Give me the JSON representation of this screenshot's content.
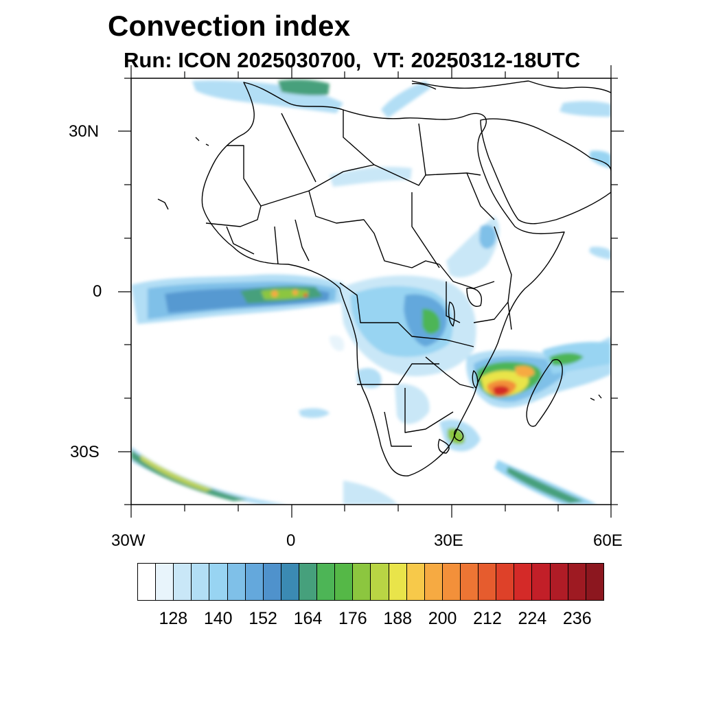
{
  "title": "Convection index",
  "subtitle": "Run: ICON 2025030700,  VT: 20250312-18UTC",
  "map": {
    "lon_range": [
      -30,
      60
    ],
    "lat_range": [
      -40,
      40
    ],
    "lat_ticks": [
      {
        "value": 30,
        "label": "30N"
      },
      {
        "value": 0,
        "label": "0"
      },
      {
        "value": -30,
        "label": "30S"
      }
    ],
    "lon_ticks": [
      {
        "value": -30,
        "label": "30W"
      },
      {
        "value": 0,
        "label": "0"
      },
      {
        "value": 30,
        "label": "30E"
      },
      {
        "value": 60,
        "label": "60E"
      }
    ]
  },
  "colorbar": {
    "colors": [
      "#ffffff",
      "#e8f4fb",
      "#c9e7f7",
      "#b2def5",
      "#98d4f2",
      "#7fc0e8",
      "#64a8dc",
      "#4f92cc",
      "#3b8ab3",
      "#46a07c",
      "#4db556",
      "#55b847",
      "#8cc63f",
      "#b9d544",
      "#e9e44a",
      "#f7c94a",
      "#f6aa42",
      "#f3903a",
      "#ed7534",
      "#e65c2e",
      "#de4129",
      "#d42a28",
      "#c21f28",
      "#b01c26",
      "#9e1a22",
      "#8c171f"
    ],
    "labels": [
      "128",
      "140",
      "152",
      "164",
      "176",
      "188",
      "200",
      "212",
      "224",
      "236"
    ]
  }
}
